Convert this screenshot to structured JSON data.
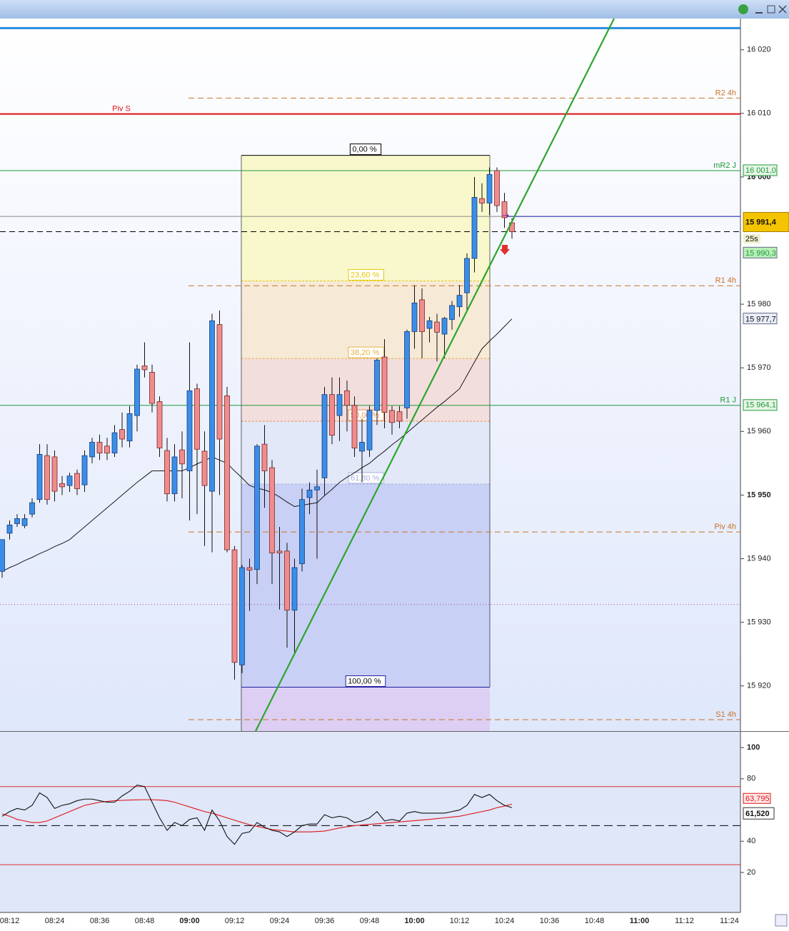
{
  "chart_data": [
    {
      "type": "candlestick",
      "ylim": [
        15912.9,
        16024.9
      ],
      "yticks": [
        {
          "value": 16020,
          "label": "16 020"
        },
        {
          "value": 16010,
          "label": "16 010"
        },
        {
          "value": 16000,
          "label": "16 000"
        },
        {
          "value": 15980,
          "label": "15 980"
        },
        {
          "value": 15970,
          "label": "15 970"
        },
        {
          "value": 15960,
          "label": "15 960"
        },
        {
          "value": 15950,
          "label": "15 950"
        },
        {
          "value": 15940,
          "label": "15 940"
        },
        {
          "value": 15930,
          "label": "15 930"
        },
        {
          "value": 15920,
          "label": "15 920"
        }
      ],
      "time_ticks": [
        "08:12",
        "08:24",
        "08:36",
        "08:48",
        "09:00",
        "09:12",
        "09:24",
        "09:36",
        "09:48",
        "10:00",
        "10:12",
        "10:24",
        "10:36",
        "10:48",
        "11:00",
        "11:12",
        "11:24"
      ],
      "colors": {
        "up": "#3b8ee8",
        "down": "#f08c8c"
      },
      "open": [
        15938,
        15944,
        15945.5,
        15945.2,
        15947,
        15949.3,
        15956.2,
        15956,
        15951.8,
        15951.5,
        15953.4,
        15951.6,
        15956,
        15958.3,
        15957.7,
        15956.6,
        15960.3,
        15958.5,
        15962.5,
        15970.3,
        15969.3,
        15964.7,
        15957,
        15950.2,
        15957.1,
        15953.8,
        15966.7,
        15956.9,
        15950.6,
        15976.8,
        15965.6,
        15941.4,
        15923.3,
        15938.6,
        15938.3,
        15958,
        15954.3,
        15941.2,
        15941.2,
        15931.9,
        15939.2,
        15949.6,
        15950.8,
        15952.7,
        15965.8,
        15962.5,
        15966.4,
        15964.1,
        15956.9,
        15957.1,
        15963.3,
        15971.7,
        15963.3,
        15963.1,
        15963.7,
        15975.7,
        15980.7,
        15976.2,
        15977.2,
        15975.3,
        15977.6,
        15979.6,
        15981.8,
        15987.2,
        15996.6,
        15995.9,
        16001,
        15996.1,
        15992.8
      ],
      "high": [
        15943,
        15946,
        15947,
        15947,
        15949.5,
        15958,
        15958,
        15957,
        15953,
        15953.5,
        15954,
        15957,
        15959,
        15959.5,
        15959,
        15961,
        15963,
        15964,
        15970.5,
        15974,
        15970.5,
        15965.5,
        15959,
        15958,
        15960,
        15974,
        15967.5,
        15960,
        15978.5,
        15979,
        15967,
        15942,
        15939,
        15940,
        15958,
        15961,
        15955.5,
        15945,
        15942.5,
        15940,
        15951,
        15952,
        15954,
        15967,
        15968.5,
        15968.5,
        15968,
        15965.5,
        15962,
        15964,
        15971.5,
        15974.5,
        15964,
        15964,
        15976,
        15983,
        15982.5,
        15978,
        15978.5,
        15978,
        15980.5,
        15983,
        15988,
        16000,
        15999,
        16001.5,
        16001.5,
        15997.5,
        15993.5
      ],
      "low": [
        15937,
        15943,
        15945,
        15944.8,
        15946.5,
        15948.8,
        15948.5,
        15949,
        15950,
        15950.5,
        15950,
        15950.5,
        15955,
        15955.5,
        15955.5,
        15956,
        15957.5,
        15957.5,
        15960,
        15968.5,
        15963,
        15956,
        15949,
        15949,
        15949.5,
        15946,
        15947,
        15942,
        15941,
        15950,
        15941,
        15921,
        15922,
        15931.8,
        15936,
        15948,
        15936,
        15932,
        15926,
        15925,
        15938,
        15947,
        15940,
        15950,
        15958,
        15958.5,
        15960,
        15956,
        15952,
        15956,
        15961,
        15960.5,
        15959.5,
        15960.5,
        15962,
        15973,
        15971.5,
        15974,
        15971,
        15971.5,
        15976,
        15978,
        15979,
        15985,
        15994.5,
        15994,
        15994.5,
        15992,
        15990.3
      ],
      "close": [
        15943,
        15945.3,
        15946.3,
        15946.3,
        15948.8,
        15956.4,
        15949.3,
        15950.6,
        15951.3,
        15953,
        15951,
        15956.2,
        15958.3,
        15956.6,
        15956.6,
        15959.8,
        15958.8,
        15962.8,
        15969.8,
        15969.7,
        15964.4,
        15957.4,
        15950.2,
        15956,
        15954.9,
        15966.4,
        15957.2,
        15951.5,
        15977.4,
        15958.8,
        15941.4,
        15923.7,
        15938.6,
        15938.2,
        15957.7,
        15953.8,
        15940.9,
        15940.9,
        15931.9,
        15938.6,
        15949.3,
        15950.8,
        15951.3,
        15965.8,
        15959.4,
        15965.8,
        15964.1,
        15957.4,
        15958.3,
        15963.3,
        15971.2,
        15963,
        15961.4,
        15961.6,
        15975.7,
        15980.2,
        15975.7,
        15977.4,
        15975.6,
        15977.8,
        15979.8,
        15981.4,
        15987.2,
        15996.8,
        15995.9,
        16000.4,
        15995.5,
        15993.6,
        15991.4
      ],
      "ma": {
        "color": "#1a1a1a",
        "values": [
          15938,
          15938.6,
          15939.1,
          15939.7,
          15940.2,
          15940.8,
          15941.3,
          15941.9,
          15942.4,
          15943,
          15944,
          15945,
          15946,
          15947,
          15948,
          15949,
          15950,
          15951,
          15952,
          15952.9,
          15953.8,
          15953.8,
          15953.8,
          15953.8,
          15953.8,
          15954.3,
          15954.9,
          15955.4,
          15956,
          15955.5,
          15955,
          15953.8,
          15952.7,
          15951.5,
          15951.1,
          15950.8,
          15950.4,
          15949.7,
          15948.9,
          15948.2,
          15948.4,
          15948.6,
          15948.8,
          15949.9,
          15950.9,
          15952,
          15952.8,
          15953.5,
          15954.3,
          15955,
          15956,
          15956.9,
          15957.9,
          15958.8,
          15959.8,
          15960.8,
          15961.8,
          15962.8,
          15963.8,
          15964.7,
          15965.7,
          15966.7,
          15968.8,
          15970.9,
          15973,
          15974.2,
          15975.3,
          15976.5,
          15977.7
        ]
      },
      "levels": [
        {
          "name": "Piv S",
          "value": 16009.9,
          "color": "#e01010",
          "style": "solid"
        },
        {
          "name": "R2 4h",
          "value": 16012.4,
          "color": "#c8732a",
          "style": "dashed"
        },
        {
          "name": "mR2 J",
          "value": 16001.0,
          "value_label": "16 001,0",
          "color": "#1f9a3a",
          "style": "solid"
        },
        {
          "name": "R1 4h",
          "value": 15982.9,
          "color": "#c8732a",
          "style": "dashed"
        },
        {
          "name": "R1 J",
          "value": 15964.1,
          "value_label": "15 964,1",
          "color": "#1f9a3a",
          "style": "solid"
        },
        {
          "name": "Piv 4h",
          "value": 15944.2,
          "color": "#c8732a",
          "style": "dashed"
        },
        {
          "name": "S1 4h",
          "value": 15914.7,
          "color": "#c8732a",
          "style": "dashed"
        }
      ],
      "lines": [
        {
          "value": 16023.4,
          "color": "#2a8de0",
          "style": "thick"
        },
        {
          "value": 15993.8,
          "color": "#1010a0",
          "style": "solid"
        },
        {
          "value": 15991.4,
          "color": "#000000",
          "style": "dashed"
        },
        {
          "value": 15932.8,
          "color": "#9a4fb0",
          "style": "dotted"
        }
      ],
      "price_labels": [
        {
          "value": 15991.4,
          "label": "15 991,4",
          "color": "#f5c400"
        },
        {
          "value": 15990.3,
          "label": "15 990,3",
          "color": "#b8f0b8"
        },
        {
          "value": 15977.7,
          "label": "15 977,7",
          "color": "#e8eef8"
        }
      ],
      "countdown": "25s",
      "fib": {
        "high": 16003.4,
        "low": 15919.8,
        "levels": [
          {
            "value": 0,
            "label": "0,00 %"
          },
          {
            "value": 23.6,
            "label": "23,60 %"
          },
          {
            "value": 38.2,
            "label": "38,20 %"
          },
          {
            "value": 50,
            "label": "50,00 %"
          },
          {
            "value": 61.8,
            "label": "61,80 %"
          },
          {
            "value": 100,
            "label": "100,00 %"
          }
        ]
      }
    },
    {
      "type": "line",
      "ylim": [
        -5.6,
        110.1
      ],
      "yticks": [
        100,
        80,
        40,
        20
      ],
      "levels": [
        {
          "value": 75,
          "color": "#e03030",
          "style": "solid"
        },
        {
          "value": 50,
          "color": "#000000",
          "style": "dashed"
        },
        {
          "value": 25,
          "color": "#e03030",
          "style": "solid"
        }
      ],
      "series": [
        {
          "color": "#e01515",
          "value_label": "63,795",
          "values": [
            57.5,
            56,
            54,
            53,
            52,
            52,
            53,
            55,
            57,
            59,
            61,
            63,
            64,
            65,
            65.5,
            66,
            66.2,
            66.4,
            66.5,
            66.6,
            66.6,
            66.4,
            66,
            65,
            63.5,
            62,
            60.5,
            59,
            58,
            56.5,
            55,
            53.5,
            52,
            50.6,
            49.5,
            48.5,
            47.5,
            47,
            46.5,
            46,
            46,
            46,
            46.2,
            46.5,
            47.5,
            48.5,
            49.3,
            50,
            50.4,
            50.8,
            51.2,
            51.6,
            52,
            52.4,
            52.8,
            53.2,
            53.6,
            54,
            54.5,
            55,
            55.5,
            56,
            57,
            58,
            59,
            60,
            61.5,
            62.5,
            63.795
          ]
        },
        {
          "color": "#111111",
          "value_label": "61,520",
          "values": [
            56,
            59,
            61,
            60,
            63,
            71,
            68,
            61,
            63,
            64,
            66,
            67,
            67,
            66,
            65,
            65,
            69,
            72,
            76,
            75,
            65,
            55,
            47,
            52,
            50,
            54,
            55,
            47,
            60,
            53,
            43,
            38,
            45,
            46,
            52,
            49,
            47,
            46,
            43,
            46,
            50,
            51,
            51,
            57,
            55,
            56,
            55,
            52,
            53,
            55,
            59,
            53,
            54,
            53,
            58,
            59,
            58,
            58,
            58,
            58,
            59,
            60,
            63,
            70,
            68,
            70,
            66,
            63,
            61.52
          ]
        }
      ]
    }
  ]
}
